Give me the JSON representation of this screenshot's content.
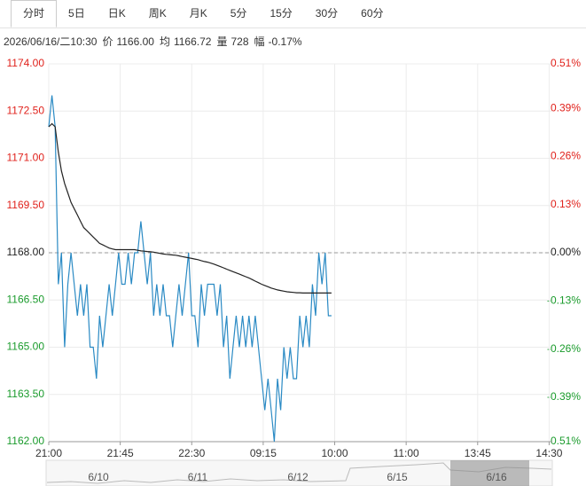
{
  "tabs": [
    "分时",
    "5日",
    "日K",
    "周K",
    "月K",
    "5分",
    "15分",
    "30分",
    "60分"
  ],
  "active_tab": 0,
  "info": {
    "datetime": "2026/06/16/二10:30",
    "items": [
      {
        "label": "价",
        "value": "1166.00"
      },
      {
        "label": "均",
        "value": "1166.72"
      },
      {
        "label": "量",
        "value": "728"
      },
      {
        "label": "幅",
        "value": "-0.17%"
      }
    ]
  },
  "chart_data": {
    "type": "line",
    "x": [
      0,
      2,
      4,
      6,
      8,
      10,
      12,
      14,
      16,
      18,
      20,
      22,
      24,
      26,
      28,
      30,
      32,
      34,
      36,
      38,
      40,
      42,
      44,
      46,
      48,
      50,
      52,
      54,
      56,
      58,
      60,
      62,
      64,
      66,
      68,
      70,
      72,
      74,
      76,
      78,
      80,
      82,
      84,
      86,
      88,
      90,
      92,
      94,
      96,
      98,
      100,
      102,
      104,
      106,
      108,
      110,
      112,
      114,
      116,
      118,
      120,
      122,
      124,
      126,
      128,
      130,
      132,
      134,
      136,
      138,
      140,
      142,
      144,
      146,
      148,
      150,
      152,
      154,
      156,
      158,
      160,
      162,
      164,
      166,
      168,
      170,
      172,
      174,
      176,
      178
    ],
    "xlim": [
      0,
      317
    ],
    "xticks": [
      {
        "value": 0,
        "label": "21:00"
      },
      {
        "value": 45,
        "label": "21:45"
      },
      {
        "value": 90,
        "label": "22:30"
      },
      {
        "value": 135,
        "label": "09:15"
      },
      {
        "value": 180,
        "label": "10:00"
      },
      {
        "value": 225,
        "label": "11:00"
      },
      {
        "value": 270,
        "label": "13:45"
      },
      {
        "value": 315,
        "label": "14:30"
      }
    ],
    "ylim": [
      1162,
      1174
    ],
    "yticks": [
      {
        "value": 1174,
        "label": "1174.00"
      },
      {
        "value": 1172.5,
        "label": "1172.50"
      },
      {
        "value": 1171,
        "label": "1171.00"
      },
      {
        "value": 1169.5,
        "label": "1169.50"
      },
      {
        "value": 1168,
        "label": "1168.00"
      },
      {
        "value": 1166.5,
        "label": "1166.50"
      },
      {
        "value": 1165,
        "label": "1165.00"
      },
      {
        "value": 1163.5,
        "label": "1163.50"
      },
      {
        "value": 1162,
        "label": "1162.00"
      }
    ],
    "y2lim": [
      -0.51,
      0.51
    ],
    "y2ticks": [
      {
        "value": 0.51,
        "label": "0.51%"
      },
      {
        "value": 0.39,
        "label": "0.39%"
      },
      {
        "value": 0.26,
        "label": "0.26%"
      },
      {
        "value": 0.13,
        "label": "0.13%"
      },
      {
        "value": 0,
        "label": "0.00%"
      },
      {
        "value": -0.13,
        "label": "-0.13%"
      },
      {
        "value": -0.26,
        "label": "-0.26%"
      },
      {
        "value": -0.39,
        "label": "-0.39%"
      },
      {
        "value": -0.51,
        "label": "-0.51%"
      }
    ],
    "baseline": 1168,
    "grid": true,
    "series": [
      {
        "color": "#2a8ac4",
        "values": [
          1172,
          1173,
          1172,
          1167,
          1168,
          1165,
          1167,
          1168,
          1167,
          1166,
          1167,
          1166,
          1167,
          1165,
          1165,
          1164,
          1166,
          1165,
          1166,
          1167,
          1166,
          1167,
          1168,
          1167,
          1167,
          1168,
          1167,
          1168,
          1168,
          1169,
          1168,
          1167,
          1168,
          1166,
          1167,
          1166,
          1167,
          1166,
          1166,
          1165,
          1166,
          1167,
          1166,
          1167,
          1168,
          1166,
          1166,
          1165,
          1167,
          1166,
          1167,
          1167,
          1167,
          1166,
          1167,
          1165,
          1166,
          1164,
          1165,
          1166,
          1165,
          1166,
          1165,
          1166,
          1165,
          1166,
          1165,
          1164,
          1163,
          1164,
          1163,
          1162,
          1164,
          1163,
          1165,
          1164,
          1165,
          1164,
          1164,
          1166,
          1165,
          1166,
          1165,
          1167,
          1166,
          1168,
          1167,
          1168,
          1166,
          1166
        ]
      },
      {
        "color": "#222222",
        "values": [
          1172,
          1172.1,
          1172,
          1171.2,
          1170.6,
          1170.2,
          1169.9,
          1169.6,
          1169.4,
          1169.2,
          1169,
          1168.8,
          1168.7,
          1168.6,
          1168.5,
          1168.4,
          1168.3,
          1168.25,
          1168.2,
          1168.15,
          1168.12,
          1168.1,
          1168.1,
          1168.1,
          1168.1,
          1168.1,
          1168.1,
          1168.1,
          1168.08,
          1168.06,
          1168.05,
          1168.04,
          1168.03,
          1168.02,
          1168,
          1167.98,
          1167.96,
          1167.95,
          1167.94,
          1167.93,
          1167.92,
          1167.9,
          1167.88,
          1167.86,
          1167.84,
          1167.82,
          1167.8,
          1167.78,
          1167.75,
          1167.72,
          1167.7,
          1167.67,
          1167.64,
          1167.6,
          1167.56,
          1167.52,
          1167.48,
          1167.44,
          1167.4,
          1167.36,
          1167.32,
          1167.28,
          1167.24,
          1167.2,
          1167.15,
          1167.1,
          1167.05,
          1167,
          1166.96,
          1166.92,
          1166.88,
          1166.85,
          1166.82,
          1166.8,
          1166.78,
          1166.76,
          1166.75,
          1166.74,
          1166.73,
          1166.73,
          1166.72,
          1166.72,
          1166.72,
          1166.72,
          1166.72,
          1166.72,
          1166.72,
          1166.72,
          1166.72,
          1166.72
        ]
      }
    ]
  },
  "navigator": {
    "labels": [
      "6/10",
      "6/11",
      "6/12",
      "6/15",
      "6/16"
    ]
  }
}
